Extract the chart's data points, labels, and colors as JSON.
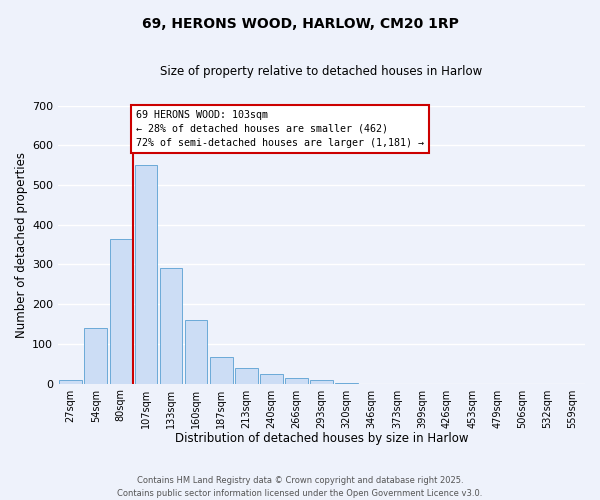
{
  "title": "69, HERONS WOOD, HARLOW, CM20 1RP",
  "subtitle": "Size of property relative to detached houses in Harlow",
  "xlabel": "Distribution of detached houses by size in Harlow",
  "ylabel": "Number of detached properties",
  "bin_labels": [
    "27sqm",
    "54sqm",
    "80sqm",
    "107sqm",
    "133sqm",
    "160sqm",
    "187sqm",
    "213sqm",
    "240sqm",
    "266sqm",
    "293sqm",
    "320sqm",
    "346sqm",
    "373sqm",
    "399sqm",
    "426sqm",
    "453sqm",
    "479sqm",
    "506sqm",
    "532sqm",
    "559sqm"
  ],
  "bin_values": [
    10,
    140,
    365,
    550,
    290,
    160,
    67,
    40,
    23,
    14,
    8,
    2,
    0,
    0,
    0,
    0,
    0,
    0,
    0,
    0,
    0
  ],
  "bar_color": "#ccddf5",
  "bar_edge_color": "#6baad8",
  "vline_x_index": 3,
  "vline_color": "#cc0000",
  "annotation_line1": "69 HERONS WOOD: 103sqm",
  "annotation_line2": "← 28% of detached houses are smaller (462)",
  "annotation_line3": "72% of semi-detached houses are larger (1,181) →",
  "annotation_box_facecolor": "#ffffff",
  "annotation_box_edgecolor": "#cc0000",
  "ylim": [
    0,
    700
  ],
  "yticks": [
    0,
    100,
    200,
    300,
    400,
    500,
    600,
    700
  ],
  "bg_color": "#eef2fb",
  "grid_color": "#ffffff",
  "footer_line1": "Contains HM Land Registry data © Crown copyright and database right 2025.",
  "footer_line2": "Contains public sector information licensed under the Open Government Licence v3.0."
}
